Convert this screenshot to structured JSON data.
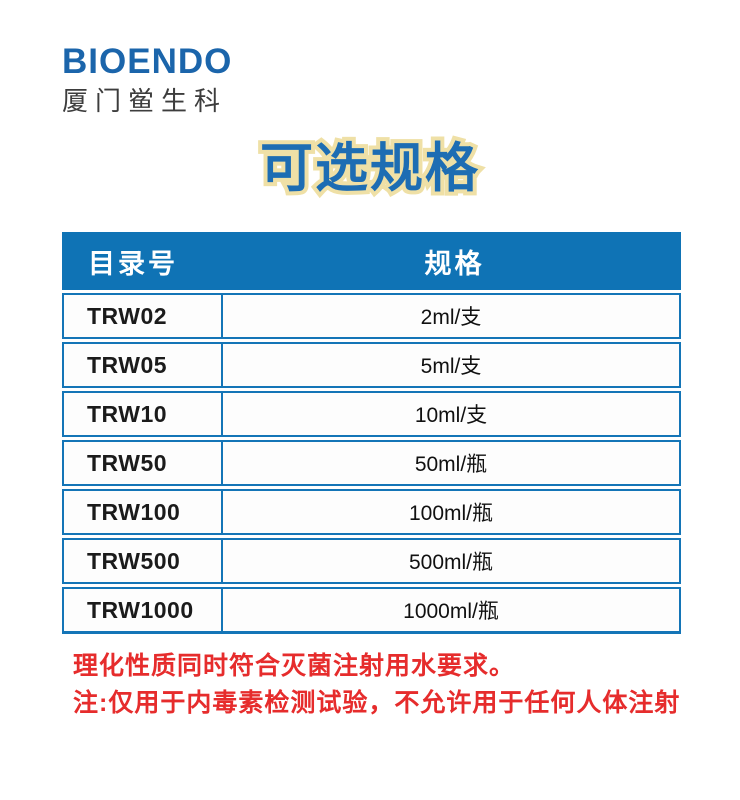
{
  "colors": {
    "accent_blue": "#0f73b5",
    "border_blue": "#1475b7",
    "logo_blue": "#1b65ab",
    "title_blue": "#1d6db3",
    "title_outline_cream": "#efe0a6",
    "note_red": "#e62c2c",
    "background": "#ffffff"
  },
  "logo": {
    "brand": "BIOENDO",
    "company": "厦门鲎生科"
  },
  "title": {
    "text": "可选规格"
  },
  "table": {
    "headers": [
      {
        "label": "目录号"
      },
      {
        "label": "规格"
      }
    ],
    "rows": [
      {
        "catalog": "TRW02",
        "spec": "2ml/支"
      },
      {
        "catalog": "TRW05",
        "spec": "5ml/支"
      },
      {
        "catalog": "TRW10",
        "spec": "10ml/支"
      },
      {
        "catalog": "TRW50",
        "spec": "50ml/瓶"
      },
      {
        "catalog": "TRW100",
        "spec": "100ml/瓶"
      },
      {
        "catalog": "TRW500",
        "spec": "500ml/瓶"
      },
      {
        "catalog": "TRW1000",
        "spec": "1000ml/瓶"
      }
    ]
  },
  "notes": {
    "line1": "理化性质同时符合灭菌注射用水要求。",
    "line2": "注:仅用于内毒素检测试验，不允许用于任何人体注射"
  }
}
